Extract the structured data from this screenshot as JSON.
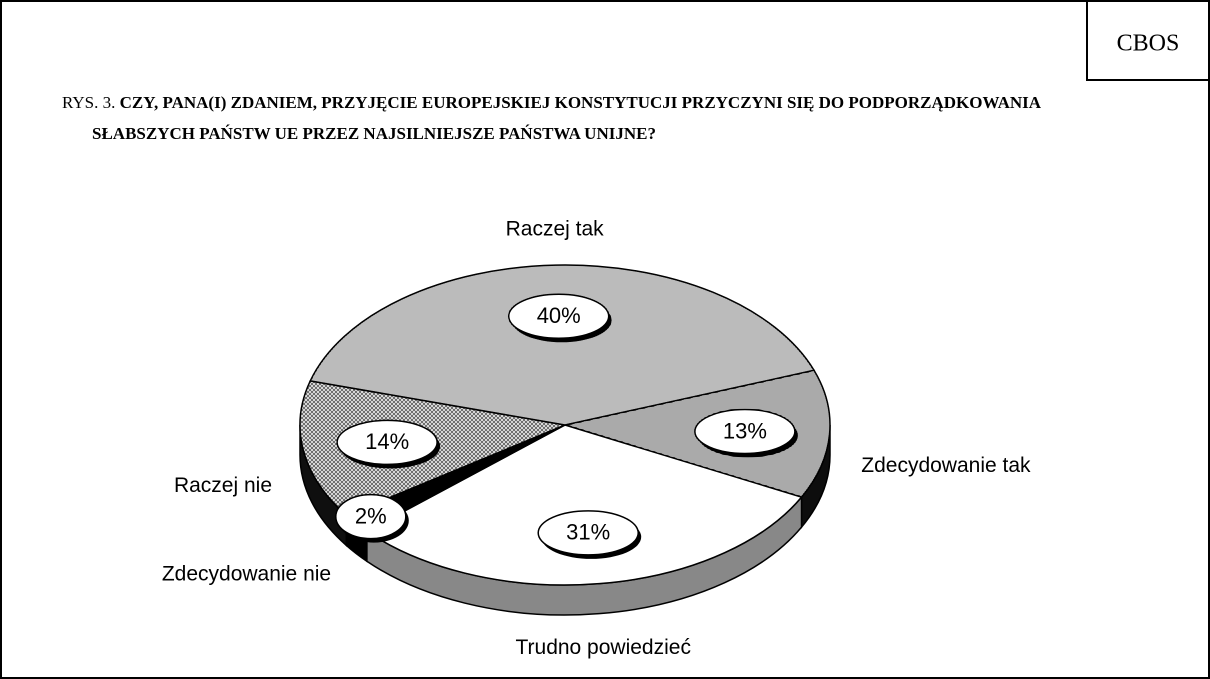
{
  "chart_data": {
    "type": "pie",
    "source": "CBOS",
    "figure_label": "RYS. 3.",
    "title": "CZY, PANA(I) ZDANIEM, PRZYJĘCIE EUROPEJSKIEJ KONSTYTUCJI PRZYCZYNI SIĘ DO PODPORZĄDKOWANIA SŁABSZYCH PAŃSTW UE PRZEZ NAJSILNIEJSZE PAŃSTWA UNIJNE?",
    "categories": [
      "Zdecydowanie tak",
      "Trudno powiedzieć",
      "Zdecydowanie nie",
      "Raczej nie",
      "Raczej tak"
    ],
    "values": [
      13,
      31,
      2,
      14,
      40
    ],
    "value_labels": [
      "13%",
      "31%",
      "2%",
      "14%",
      "40%"
    ],
    "colors": [
      "#555555",
      "#ffffff",
      "#000000",
      "#666666",
      "#777777"
    ]
  }
}
